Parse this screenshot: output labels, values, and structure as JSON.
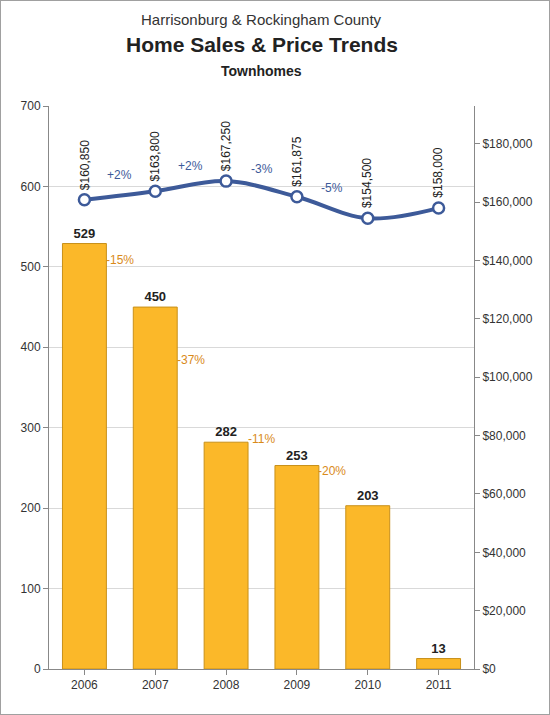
{
  "chart_data": {
    "type": "bar",
    "suptitle": "Harrisonburg & Rockingham County",
    "title": "Home Sales & Price Trends",
    "subtitle": "Townhomes",
    "categories": [
      "2006",
      "2007",
      "2008",
      "2009",
      "2010",
      "2011"
    ],
    "series": [
      {
        "type": "bar",
        "axis": "y",
        "color": "#fbb829",
        "values": [
          529,
          450,
          282,
          253,
          203,
          13
        ],
        "data_labels": true,
        "change_labels": [
          "-15%",
          "-37%",
          "-11%",
          "-20%"
        ]
      },
      {
        "type": "line",
        "axis": "y2",
        "color": "#3d5a99",
        "marker": "circle",
        "line_style": "solid",
        "values": [
          160850,
          163800,
          167250,
          161875,
          154500,
          158000
        ],
        "value_labels": [
          "$160,850",
          "$163,800",
          "$167,250",
          "$161,875",
          "$154,500",
          "$158,000"
        ],
        "data_labels": true,
        "change_labels": [
          "+2%",
          "+2%",
          "-3%",
          "-5%"
        ]
      }
    ],
    "ylim": [
      0,
      700
    ],
    "yticks": [
      0,
      100,
      200,
      300,
      400,
      500,
      600,
      700
    ],
    "y2lim": [
      0,
      193000
    ],
    "y2ticks": [
      {
        "value": 0,
        "label": "$0"
      },
      {
        "value": 20000,
        "label": "$20,000"
      },
      {
        "value": 40000,
        "label": "$40,000"
      },
      {
        "value": 60000,
        "label": "$60,000"
      },
      {
        "value": 80000,
        "label": "$80,000"
      },
      {
        "value": 100000,
        "label": "$100,000"
      },
      {
        "value": 120000,
        "label": "$120,000"
      },
      {
        "value": 140000,
        "label": "$140,000"
      },
      {
        "value": 160000,
        "label": "$160,000"
      },
      {
        "value": 180000,
        "label": "$180,000"
      }
    ],
    "grid": true
  }
}
